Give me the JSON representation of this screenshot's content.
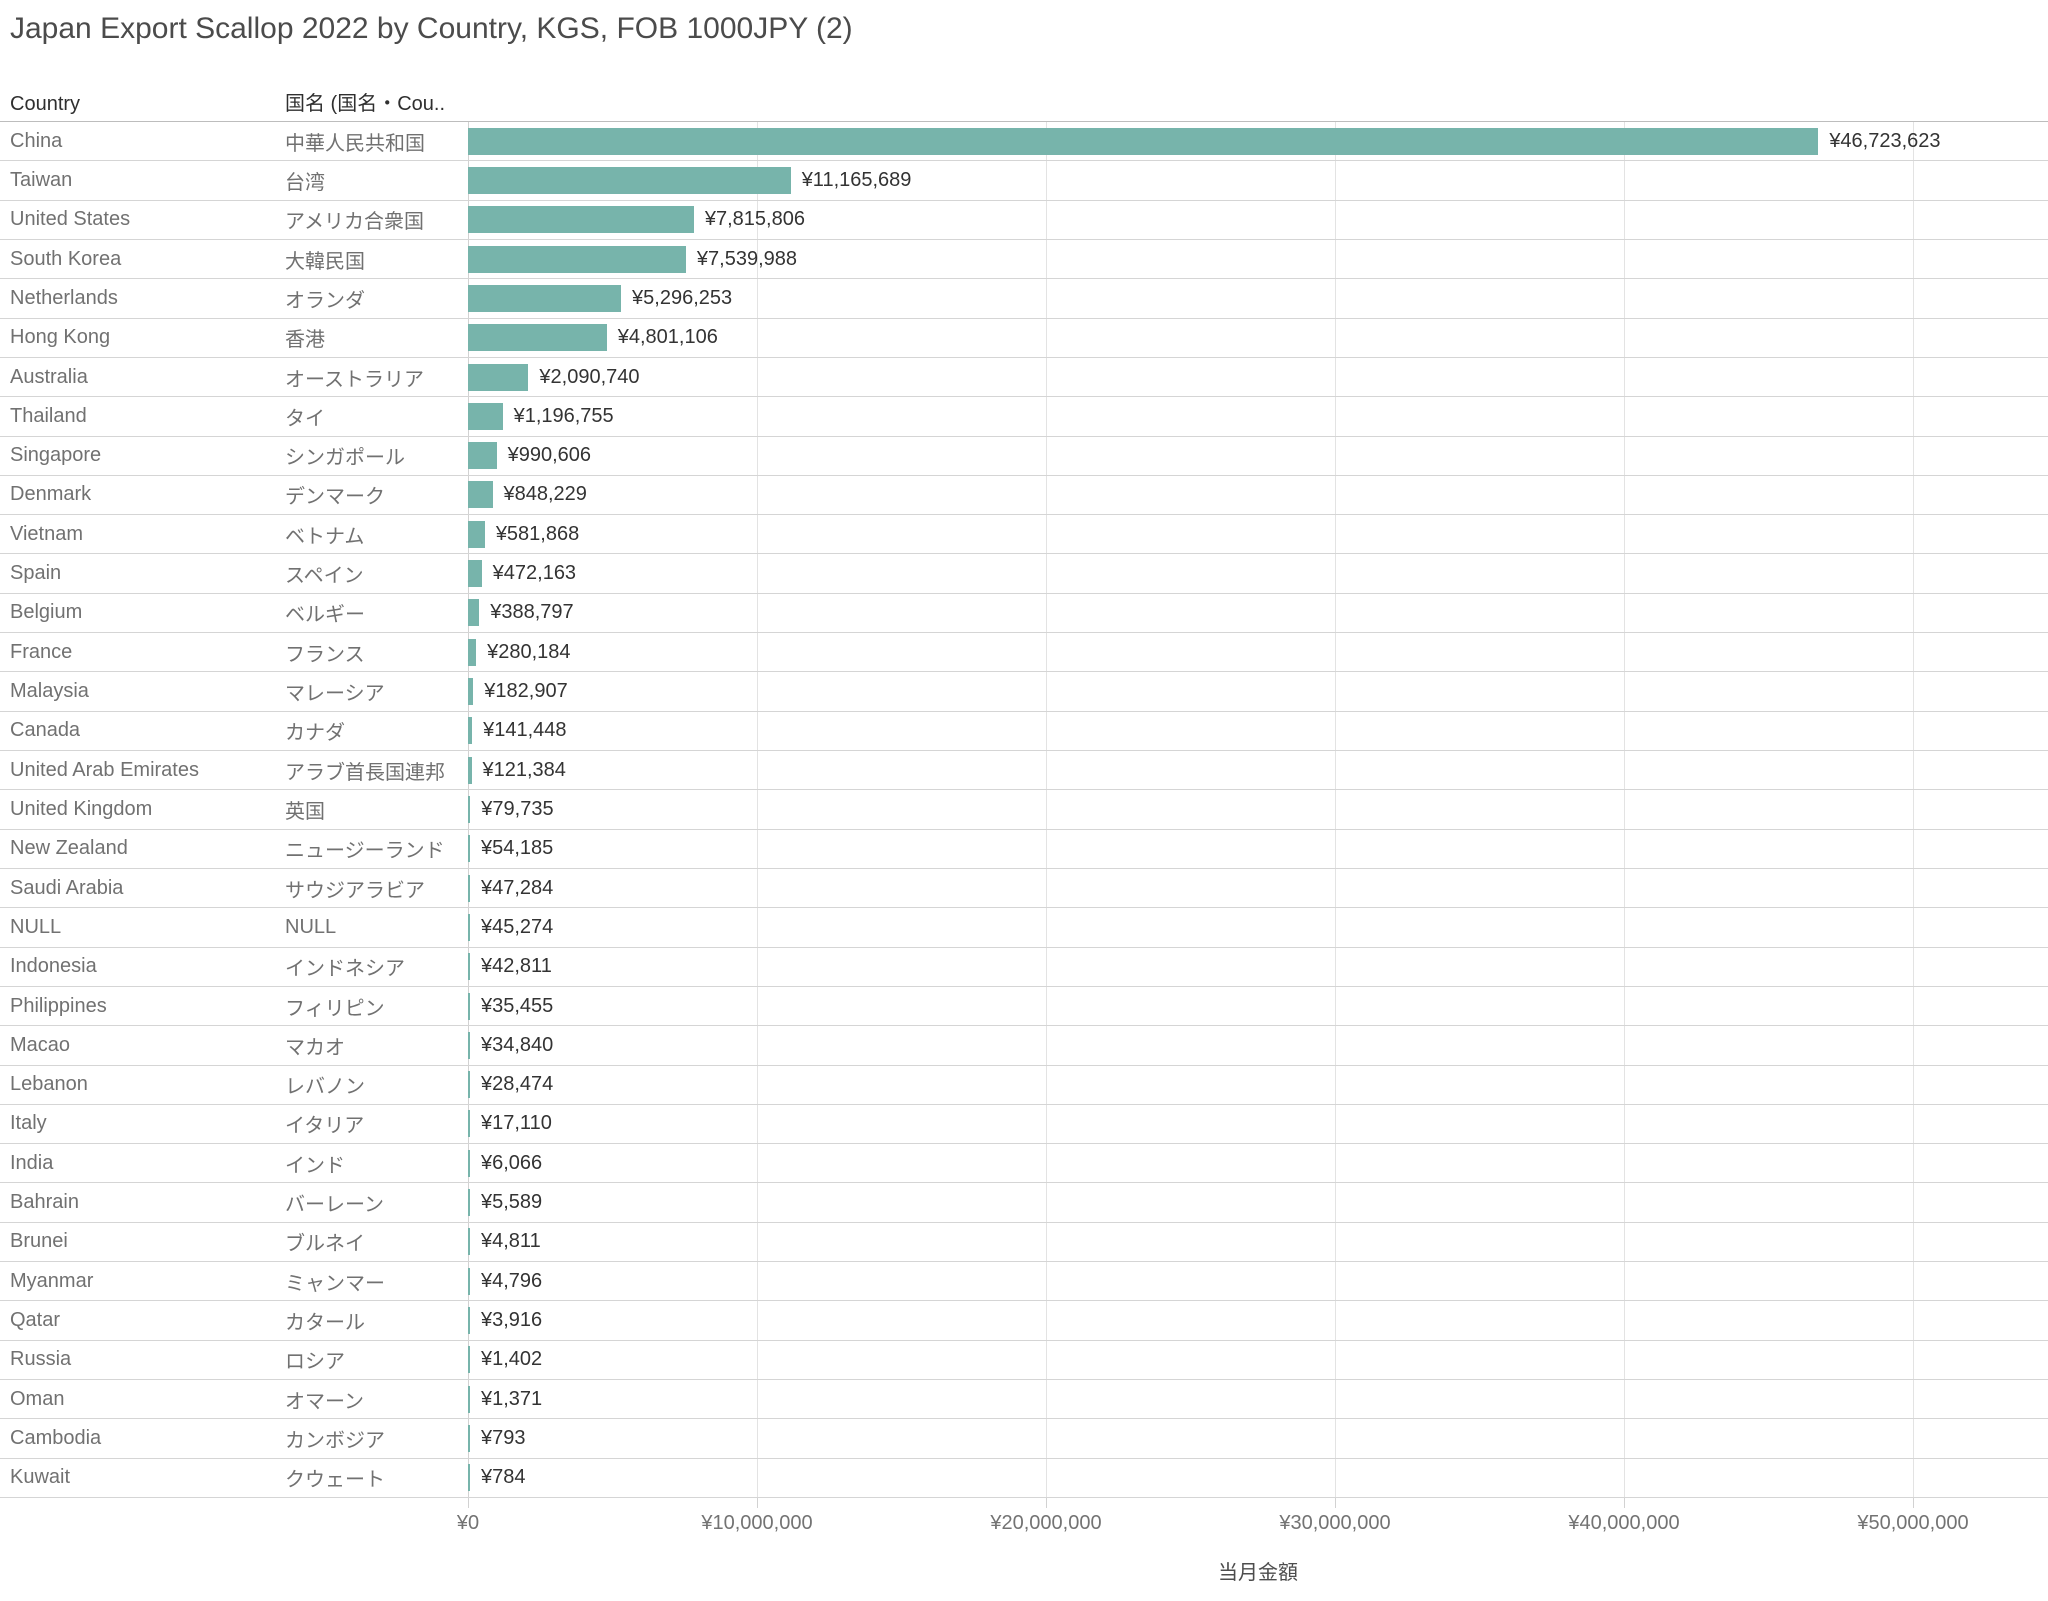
{
  "title": "Japan Export Scallop 2022 by Country, KGS, FOB 1000JPY (2)",
  "columns": {
    "country_header": "Country",
    "jp_name_header": "国名 (国名・Cou.."
  },
  "colors": {
    "bar": "#77b4ab",
    "gridline": "#e3e3e3",
    "row_divider": "#d5d5d5"
  },
  "chart_data": {
    "type": "bar",
    "orientation": "horizontal",
    "title": "Japan Export Scallop 2022 by Country, KGS, FOB 1000JPY (2)",
    "xlabel": "当月金額",
    "ylabel": "Country / 国名",
    "xlim": [
      0,
      54600000
    ],
    "grid": true,
    "x_ticks": [
      "¥0",
      "¥10,000,000",
      "¥20,000,000",
      "¥30,000,000",
      "¥40,000,000",
      "¥50,000,000"
    ],
    "x_tick_values": [
      0,
      10000000,
      20000000,
      30000000,
      40000000,
      50000000
    ],
    "categories": [
      "China",
      "Taiwan",
      "United States",
      "South Korea",
      "Netherlands",
      "Hong Kong",
      "Australia",
      "Thailand",
      "Singapore",
      "Denmark",
      "Vietnam",
      "Spain",
      "Belgium",
      "France",
      "Malaysia",
      "Canada",
      "United Arab Emirates",
      "United Kingdom",
      "New Zealand",
      "Saudi Arabia",
      "NULL",
      "Indonesia",
      "Philippines",
      "Macao",
      "Lebanon",
      "Italy",
      "India",
      "Bahrain",
      "Brunei",
      "Myanmar",
      "Qatar",
      "Russia",
      "Oman",
      "Cambodia",
      "Kuwait"
    ],
    "categories_jp": [
      "中華人民共和国",
      "台湾",
      "アメリカ合衆国",
      "大韓民国",
      "オランダ",
      "香港",
      "オーストラリア",
      "タイ",
      "シンガポール",
      "デンマーク",
      "ベトナム",
      "スペイン",
      "ベルギー",
      "フランス",
      "マレーシア",
      "カナダ",
      "アラブ首長国連邦",
      "英国",
      "ニュージーランド",
      "サウジアラビア",
      "NULL",
      "インドネシア",
      "フィリピン",
      "マカオ",
      "レバノン",
      "イタリア",
      "インド",
      "バーレーン",
      "ブルネイ",
      "ミャンマー",
      "カタール",
      "ロシア",
      "オマーン",
      "カンボジア",
      "クウェート"
    ],
    "values": [
      46723623,
      11165689,
      7815806,
      7539988,
      5296253,
      4801106,
      2090740,
      1196755,
      990606,
      848229,
      581868,
      472163,
      388797,
      280184,
      182907,
      141448,
      121384,
      79735,
      54185,
      47284,
      45274,
      42811,
      35455,
      34840,
      28474,
      17110,
      6066,
      5589,
      4811,
      4796,
      3916,
      1402,
      1371,
      793,
      784
    ],
    "value_labels": [
      "¥46,723,623",
      "¥11,165,689",
      "¥7,815,806",
      "¥7,539,988",
      "¥5,296,253",
      "¥4,801,106",
      "¥2,090,740",
      "¥1,196,755",
      "¥990,606",
      "¥848,229",
      "¥581,868",
      "¥472,163",
      "¥388,797",
      "¥280,184",
      "¥182,907",
      "¥141,448",
      "¥121,384",
      "¥79,735",
      "¥54,185",
      "¥47,284",
      "¥45,274",
      "¥42,811",
      "¥35,455",
      "¥34,840",
      "¥28,474",
      "¥17,110",
      "¥6,066",
      "¥5,589",
      "¥4,811",
      "¥4,796",
      "¥3,916",
      "¥1,402",
      "¥1,371",
      "¥793",
      "¥784"
    ]
  }
}
